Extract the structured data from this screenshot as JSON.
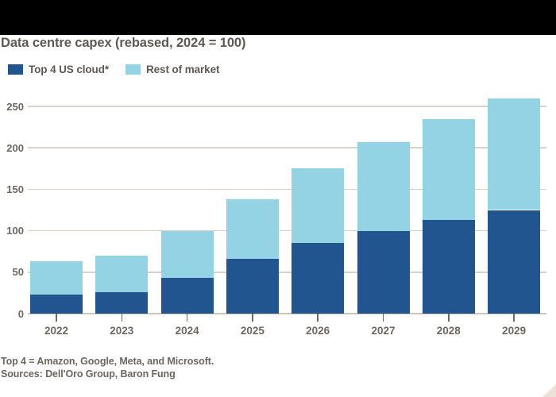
{
  "title": "Data centre capex (rebased, 2024 = 100)",
  "footer": {
    "note": "Top 4 = Amazon, Google, Meta, and Microsoft.",
    "sources": "Sources: Dell'Oro Group, Baron Fung"
  },
  "colors": {
    "top_bar": "#000000",
    "top4_blue": "#205590",
    "rest_light_blue": "#94d3e4",
    "gridline": "#d8d1c5",
    "baseline": "#cfc6b9",
    "tick": "#6f6963",
    "title_text": "#5e5954",
    "axis_text": "#6c6762",
    "footer_text": "#6b6660",
    "corner_triangle": "#eee1d5"
  },
  "chart_data": {
    "type": "bar",
    "stacked": true,
    "title": "Data centre capex (rebased, 2024 = 100)",
    "categories": [
      "2022",
      "2023",
      "2024",
      "2025",
      "2026",
      "2027",
      "2028",
      "2029"
    ],
    "series": [
      {
        "name": "Top 4 US cloud*",
        "color": "#205590",
        "values": [
          23,
          26,
          43,
          66,
          85,
          100,
          113,
          125
        ]
      },
      {
        "name": "Rest of market",
        "color": "#94d3e4",
        "values": [
          40,
          44,
          57,
          72,
          90,
          107,
          122,
          135
        ]
      }
    ],
    "totals": [
      63,
      70,
      100,
      138,
      175,
      207,
      235,
      260
    ],
    "xlabel": "",
    "ylabel": "",
    "ylim": [
      0,
      250
    ],
    "yticks": [
      0,
      50,
      100,
      150,
      200,
      250
    ],
    "grid": true,
    "legend_position": "top-left"
  }
}
